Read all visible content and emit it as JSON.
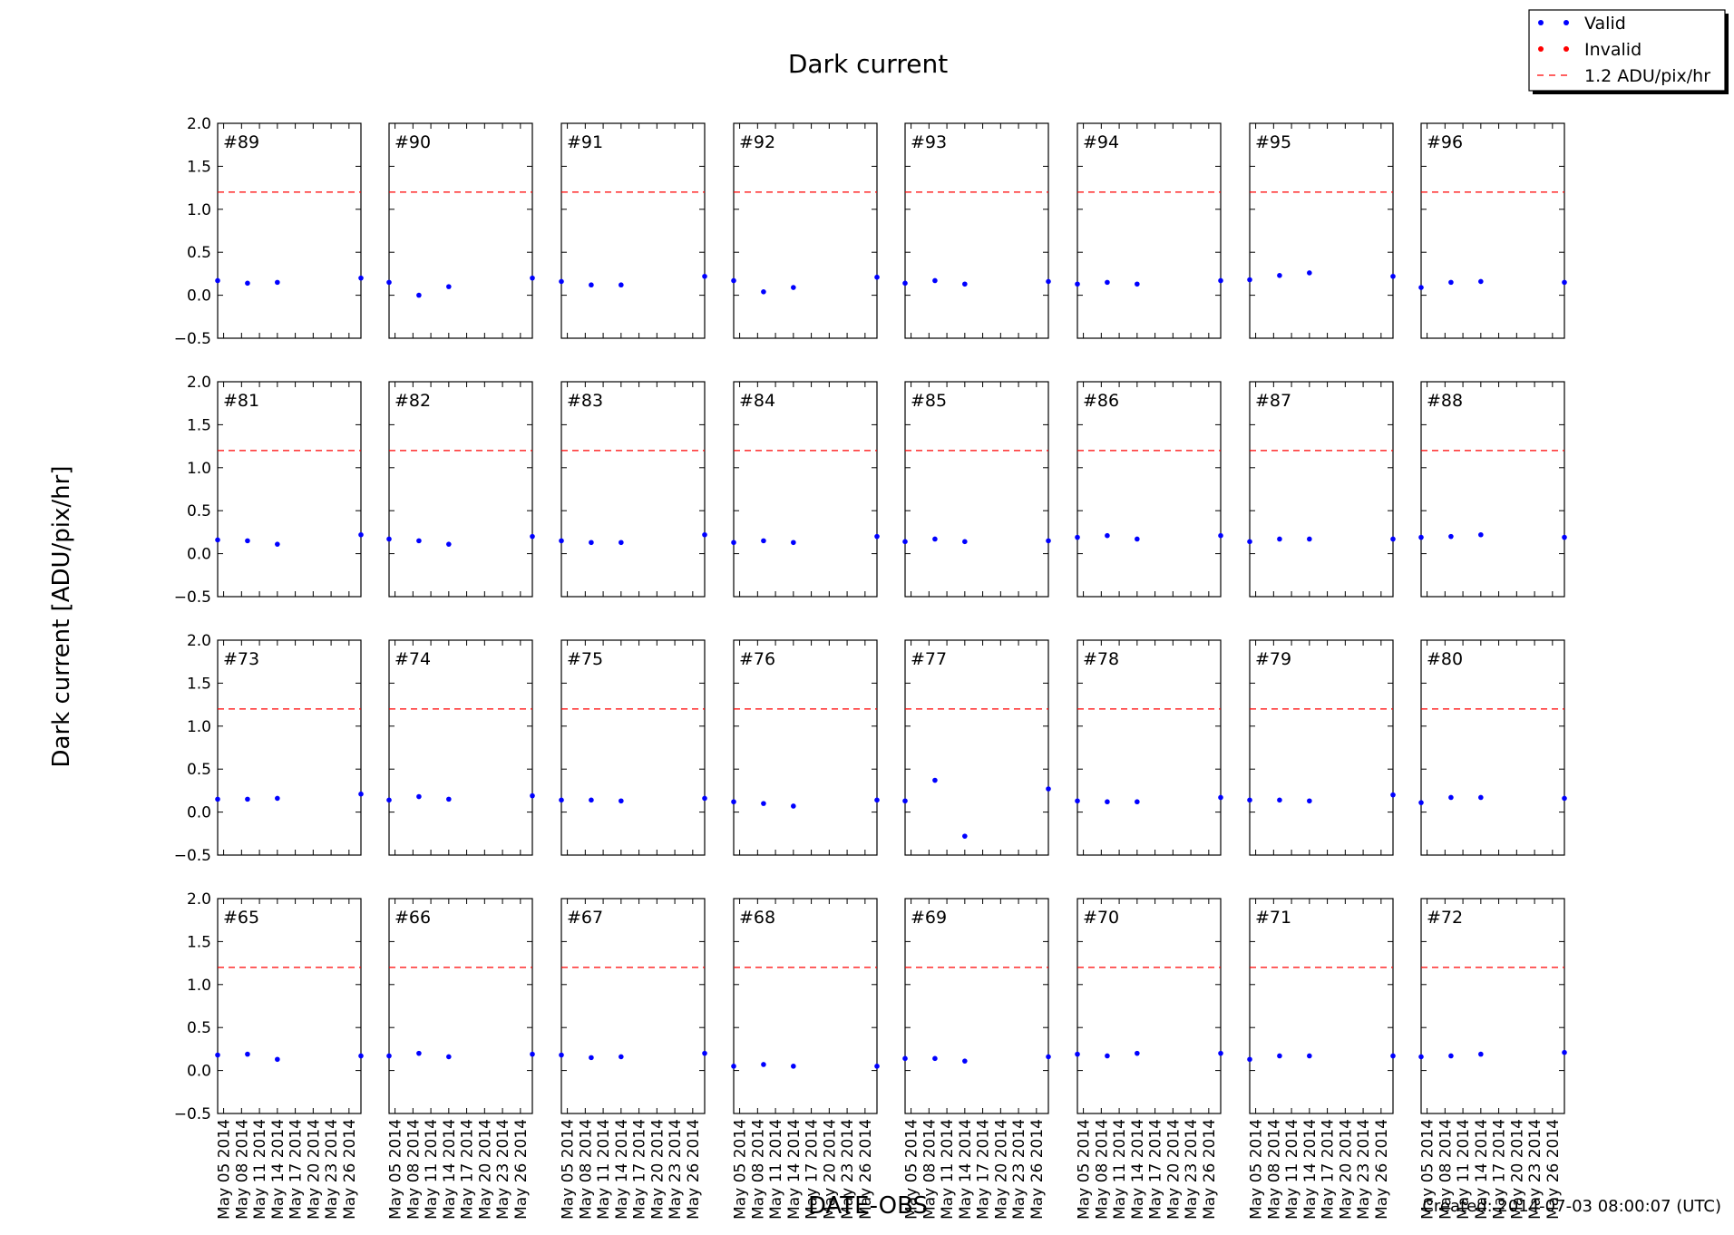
{
  "figure": {
    "title": "Dark current",
    "xlabel": "DATE-OBS",
    "ylabel": "Dark current [ADU/pix/hr]",
    "footer": "Created: 2014-07-03 08:00:07 (UTC)"
  },
  "legend": {
    "placement": "top-right",
    "entries": [
      {
        "label": "Valid",
        "marker": "dot",
        "color": "#0000ff"
      },
      {
        "label": "Invalid",
        "marker": "dot",
        "color": "#ff0000"
      },
      {
        "label": "1.2 ADU/pix/hr",
        "marker": "dashed-line",
        "color": "#ff0000"
      }
    ]
  },
  "colors": {
    "valid": "#0000ff",
    "invalid": "#ff0000",
    "threshold": "#ff0000",
    "axes": "#000000"
  },
  "chart_data": {
    "type": "scatter",
    "layout": "grid of 4 rows x 8 columns, shared axes",
    "threshold": 1.2,
    "ylim": [
      -0.5,
      2.0
    ],
    "yticks": [
      "2.0",
      "1.5",
      "1.0",
      "0.5",
      "0.0",
      "−0.5"
    ],
    "ytick_values": [
      2.0,
      1.5,
      1.0,
      0.5,
      0.0,
      -0.5
    ],
    "xlim": [
      "2014-05-04",
      "2014-05-28"
    ],
    "xtick_dates": [
      "2014-05-05",
      "2014-05-08",
      "2014-05-11",
      "2014-05-14",
      "2014-05-17",
      "2014-05-20",
      "2014-05-23",
      "2014-05-26"
    ],
    "xticks": [
      "May 05 2014",
      "May 08 2014",
      "May 11 2014",
      "May 14 2014",
      "May 17 2014",
      "May 20 2014",
      "May 23 2014",
      "May 26 2014"
    ],
    "x_dates": [
      "2014-05-04",
      "2014-05-09",
      "2014-05-14",
      "2014-05-28"
    ],
    "grid": false,
    "rows": [
      [
        {
          "label": "#89",
          "valid": [
            0.17,
            0.14,
            0.15,
            0.2
          ]
        },
        {
          "label": "#90",
          "valid": [
            0.15,
            0.0,
            0.1,
            0.2
          ]
        },
        {
          "label": "#91",
          "valid": [
            0.16,
            0.12,
            0.12,
            0.22
          ]
        },
        {
          "label": "#92",
          "valid": [
            0.17,
            0.04,
            0.09,
            0.21
          ]
        },
        {
          "label": "#93",
          "valid": [
            0.14,
            0.17,
            0.13,
            0.16
          ]
        },
        {
          "label": "#94",
          "valid": [
            0.13,
            0.15,
            0.13,
            0.17
          ]
        },
        {
          "label": "#95",
          "valid": [
            0.18,
            0.23,
            0.26,
            0.22
          ]
        },
        {
          "label": "#96",
          "valid": [
            0.09,
            0.15,
            0.16,
            0.15
          ]
        }
      ],
      [
        {
          "label": "#81",
          "valid": [
            0.16,
            0.15,
            0.11,
            0.22
          ]
        },
        {
          "label": "#82",
          "valid": [
            0.17,
            0.15,
            0.11,
            0.2
          ]
        },
        {
          "label": "#83",
          "valid": [
            0.15,
            0.13,
            0.13,
            0.22
          ]
        },
        {
          "label": "#84",
          "valid": [
            0.13,
            0.15,
            0.13,
            0.2
          ]
        },
        {
          "label": "#85",
          "valid": [
            0.14,
            0.17,
            0.14,
            0.15
          ]
        },
        {
          "label": "#86",
          "valid": [
            0.19,
            0.21,
            0.17,
            0.21
          ]
        },
        {
          "label": "#87",
          "valid": [
            0.14,
            0.17,
            0.17,
            0.17
          ]
        },
        {
          "label": "#88",
          "valid": [
            0.19,
            0.2,
            0.22,
            0.19
          ]
        }
      ],
      [
        {
          "label": "#73",
          "valid": [
            0.15,
            0.15,
            0.16,
            0.21
          ]
        },
        {
          "label": "#74",
          "valid": [
            0.14,
            0.18,
            0.15,
            0.19
          ]
        },
        {
          "label": "#75",
          "valid": [
            0.14,
            0.14,
            0.13,
            0.16
          ]
        },
        {
          "label": "#76",
          "valid": [
            0.12,
            0.1,
            0.07,
            0.14
          ]
        },
        {
          "label": "#77",
          "valid": [
            0.13,
            0.37,
            -0.28,
            0.27
          ]
        },
        {
          "label": "#78",
          "valid": [
            0.13,
            0.12,
            0.12,
            0.17
          ]
        },
        {
          "label": "#79",
          "valid": [
            0.14,
            0.14,
            0.13,
            0.2
          ]
        },
        {
          "label": "#80",
          "valid": [
            0.11,
            0.17,
            0.17,
            0.16
          ]
        }
      ],
      [
        {
          "label": "#65",
          "valid": [
            0.18,
            0.19,
            0.13,
            0.17
          ]
        },
        {
          "label": "#66",
          "valid": [
            0.17,
            0.2,
            0.16,
            0.19
          ]
        },
        {
          "label": "#67",
          "valid": [
            0.18,
            0.15,
            0.16,
            0.2
          ]
        },
        {
          "label": "#68",
          "valid": [
            0.05,
            0.07,
            0.05,
            0.05
          ]
        },
        {
          "label": "#69",
          "valid": [
            0.14,
            0.14,
            0.11,
            0.16
          ]
        },
        {
          "label": "#70",
          "valid": [
            0.19,
            0.17,
            0.2,
            0.2
          ]
        },
        {
          "label": "#71",
          "valid": [
            0.13,
            0.17,
            0.17,
            0.17
          ]
        },
        {
          "label": "#72",
          "valid": [
            0.16,
            0.17,
            0.19,
            0.21
          ]
        }
      ]
    ]
  }
}
